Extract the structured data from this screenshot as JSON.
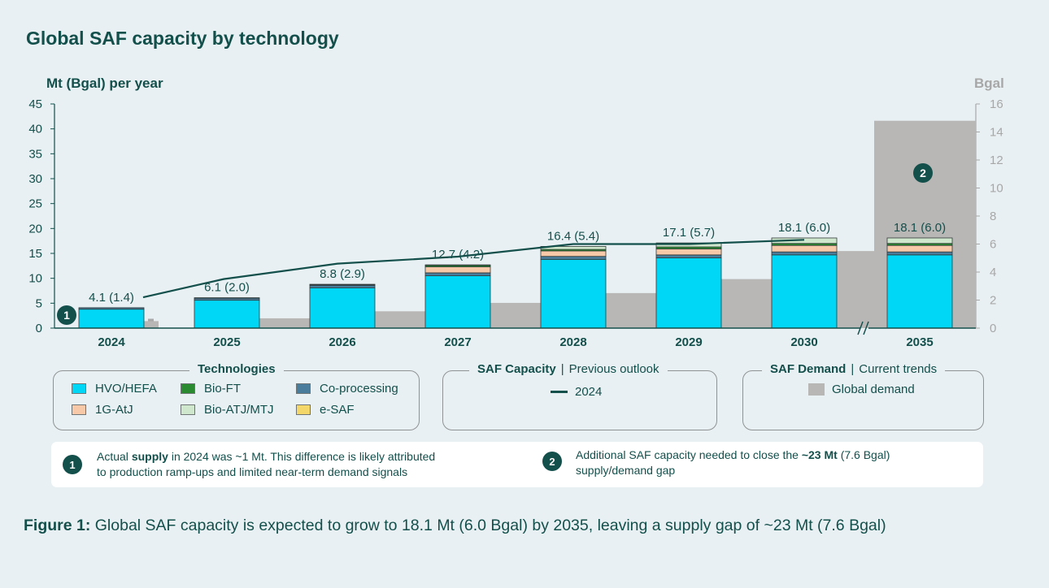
{
  "title": "Global SAF capacity by technology",
  "left_axis_unit": "Mt (Bgal) per year",
  "right_axis_unit": "Bgal",
  "colors": {
    "HVO/HEFA": "#00d6f5",
    "Bio-FT": "#2a8a30",
    "Co-processing": "#4a7d9c",
    "1G-AtJ": "#f7c9a8",
    "Bio-ATJ/MTJ": "#cfe7cc",
    "e-SAF": "#f3d76b",
    "line": "#134f4b",
    "demand": "#b9b7b5",
    "axis": "#134f4b"
  },
  "chart_data": {
    "type": "bar",
    "categories": [
      "2024",
      "2025",
      "2026",
      "2027",
      "2028",
      "2029",
      "2030",
      "2035"
    ],
    "left_axis": {
      "min": 0,
      "max": 45,
      "ticks": [
        "0",
        "5",
        "10",
        "15",
        "20",
        "25",
        "30",
        "35",
        "40",
        "45"
      ]
    },
    "right_axis": {
      "min": 0,
      "max": 16,
      "ticks": [
        "0",
        "2",
        "4",
        "6",
        "8",
        "10",
        "12",
        "14",
        "16"
      ]
    },
    "series": [
      {
        "name": "HVO/HEFA",
        "values": [
          3.8,
          5.6,
          8.1,
          10.5,
          13.8,
          14.1,
          14.7,
          14.7
        ]
      },
      {
        "name": "Co-processing",
        "values": [
          0.3,
          0.4,
          0.5,
          0.6,
          0.6,
          0.6,
          0.6,
          0.6
        ]
      },
      {
        "name": "1G-AtJ",
        "values": [
          0.0,
          0.0,
          0.1,
          1.2,
          1.1,
          1.2,
          1.3,
          1.3
        ]
      },
      {
        "name": "Bio-FT",
        "values": [
          0.0,
          0.1,
          0.1,
          0.3,
          0.3,
          0.4,
          0.4,
          0.4
        ]
      },
      {
        "name": "Bio-ATJ/MTJ",
        "values": [
          0.0,
          0.0,
          0.0,
          0.1,
          0.6,
          0.8,
          1.1,
          1.1
        ]
      },
      {
        "name": "e-SAF",
        "values": [
          0.0,
          0.0,
          0.0,
          0.0,
          0.0,
          0.0,
          0.0,
          0.0
        ]
      }
    ],
    "bar_labels": [
      "4.1 (1.4)",
      "6.1 (2.0)",
      "8.8 (2.9)",
      "12.7 (4.2)",
      "16.4 (5.4)",
      "17.1 (5.7)",
      "18.1 (6.0)",
      "18.1 (6.0)"
    ],
    "previous_outlook_2024": {
      "name": "2024",
      "values": [
        2.2,
        3.5,
        4.6,
        5.1,
        6.0,
        6.0,
        6.3
      ]
    },
    "global_demand": {
      "name": "Global demand",
      "values": [
        0.5,
        0.7,
        1.2,
        1.8,
        2.5,
        3.5,
        5.5,
        14.8
      ]
    },
    "axis_break_between": [
      "2030",
      "2035"
    ],
    "markers": [
      {
        "label": "1",
        "category": "2024"
      },
      {
        "label": "2",
        "category": "2035"
      }
    ]
  },
  "legend": {
    "technologies": {
      "title": "Technologies",
      "items": [
        "HVO/HEFA",
        "Bio-FT",
        "Co-processing",
        "1G-AtJ",
        "Bio-ATJ/MTJ",
        "e-SAF"
      ]
    },
    "capacity": {
      "title_bold": "SAF Capacity",
      "separator": "|",
      "title_rest": "Previous outlook",
      "item": "2024"
    },
    "demand": {
      "title_bold": "SAF Demand",
      "separator": "|",
      "title_rest": "Current trends",
      "item": "Global demand"
    }
  },
  "notes": [
    {
      "number": "1",
      "pre": "Actual ",
      "bold": "supply",
      "post": " in 2024 was ~1 Mt. This difference is likely attributed",
      "line2": "to production ramp-ups and limited near-term demand signals"
    },
    {
      "number": "2",
      "pre": "Additional SAF capacity needed to close the ",
      "bold": "~23 Mt",
      "post": " (7.6 Bgal)",
      "line2": "supply/demand gap"
    }
  ],
  "caption": {
    "bold": "Figure 1:",
    "text": " Global SAF capacity is expected to grow to 18.1 Mt (6.0 Bgal) by 2035, leaving a supply gap of ~23 Mt (7.6 Bgal)"
  }
}
